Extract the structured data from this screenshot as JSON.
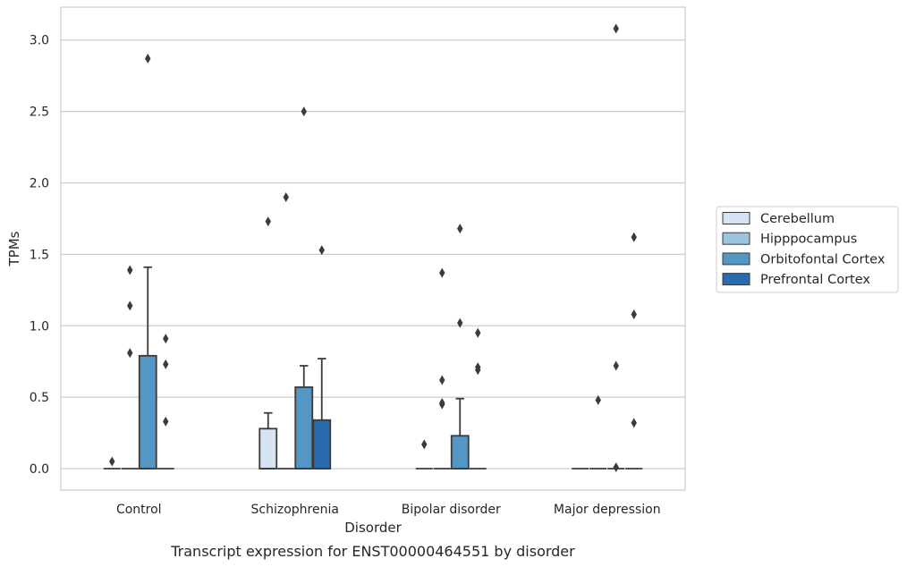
{
  "chart_data": {
    "type": "box",
    "caption": "Transcript expression for ENST00000464551 by disorder",
    "xlabel": "Disorder",
    "ylabel": "TPMs",
    "ylim": [
      -0.15,
      3.23
    ],
    "yticks": [
      0.0,
      0.5,
      1.0,
      1.5,
      2.0,
      2.5,
      3.0
    ],
    "ytick_labels": [
      "0.0",
      "0.5",
      "1.0",
      "1.5",
      "2.0",
      "2.5",
      "3.0"
    ],
    "grid": "horizontal",
    "legend_position": "right",
    "categories": [
      "Control",
      "Schizophrenia",
      "Bipolar disorder",
      "Major depression"
    ],
    "series": [
      {
        "name": "Cerebellum",
        "color": "#d5e3f3",
        "boxes": [
          {
            "q1": 0,
            "median": 0,
            "q3": 0,
            "whislo": 0,
            "whishi": 0,
            "fliers": [
              0.05
            ]
          },
          {
            "q1": 0,
            "median": 0,
            "q3": 0.28,
            "whislo": 0,
            "whishi": 0.39,
            "fliers": [
              1.73
            ]
          },
          {
            "q1": 0,
            "median": 0,
            "q3": 0,
            "whislo": 0,
            "whishi": 0,
            "fliers": [
              0.17
            ]
          },
          {
            "q1": 0,
            "median": 0,
            "q3": 0,
            "whislo": 0,
            "whishi": 0,
            "fliers": []
          }
        ]
      },
      {
        "name": "Hipppocampus",
        "color": "#9ac4e0",
        "boxes": [
          {
            "q1": 0,
            "median": 0,
            "q3": 0,
            "whislo": 0,
            "whishi": 0,
            "fliers": [
              1.39,
              1.14,
              0.81
            ]
          },
          {
            "q1": 0,
            "median": 0,
            "q3": 0,
            "whislo": 0,
            "whishi": 0,
            "fliers": [
              1.9
            ]
          },
          {
            "q1": 0,
            "median": 0,
            "q3": 0,
            "whislo": 0,
            "whishi": 0,
            "fliers": [
              1.37,
              0.62,
              0.46,
              0.45
            ]
          },
          {
            "q1": 0,
            "median": 0,
            "q3": 0,
            "whislo": 0,
            "whishi": 0,
            "fliers": [
              0.48
            ]
          }
        ]
      },
      {
        "name": "Orbitofontal Cortex",
        "color": "#5496c4",
        "boxes": [
          {
            "q1": 0,
            "median": 0,
            "q3": 0.79,
            "whislo": 0,
            "whishi": 1.41,
            "fliers": [
              2.87
            ]
          },
          {
            "q1": 0,
            "median": 0,
            "q3": 0.57,
            "whislo": 0,
            "whishi": 0.72,
            "fliers": [
              2.5
            ]
          },
          {
            "q1": 0,
            "median": 0,
            "q3": 0.23,
            "whislo": 0,
            "whishi": 0.49,
            "fliers": [
              1.68,
              1.02
            ]
          },
          {
            "q1": 0,
            "median": 0,
            "q3": 0,
            "whislo": 0,
            "whishi": 0,
            "fliers": [
              3.08,
              0.72,
              0.01
            ]
          }
        ]
      },
      {
        "name": "Prefrontal Cortex",
        "color": "#2a6aae",
        "boxes": [
          {
            "q1": 0,
            "median": 0,
            "q3": 0,
            "whislo": 0,
            "whishi": 0,
            "fliers": [
              0.91,
              0.73,
              0.33
            ]
          },
          {
            "q1": 0,
            "median": 0,
            "q3": 0.34,
            "whislo": 0,
            "whishi": 0.77,
            "fliers": [
              1.53
            ]
          },
          {
            "q1": 0,
            "median": 0,
            "q3": 0,
            "whislo": 0,
            "whishi": 0,
            "fliers": [
              0.95,
              0.71,
              0.69
            ]
          },
          {
            "q1": 0,
            "median": 0,
            "q3": 0,
            "whislo": 0,
            "whishi": 0,
            "fliers": [
              1.62,
              1.08,
              0.32
            ]
          }
        ]
      }
    ]
  }
}
